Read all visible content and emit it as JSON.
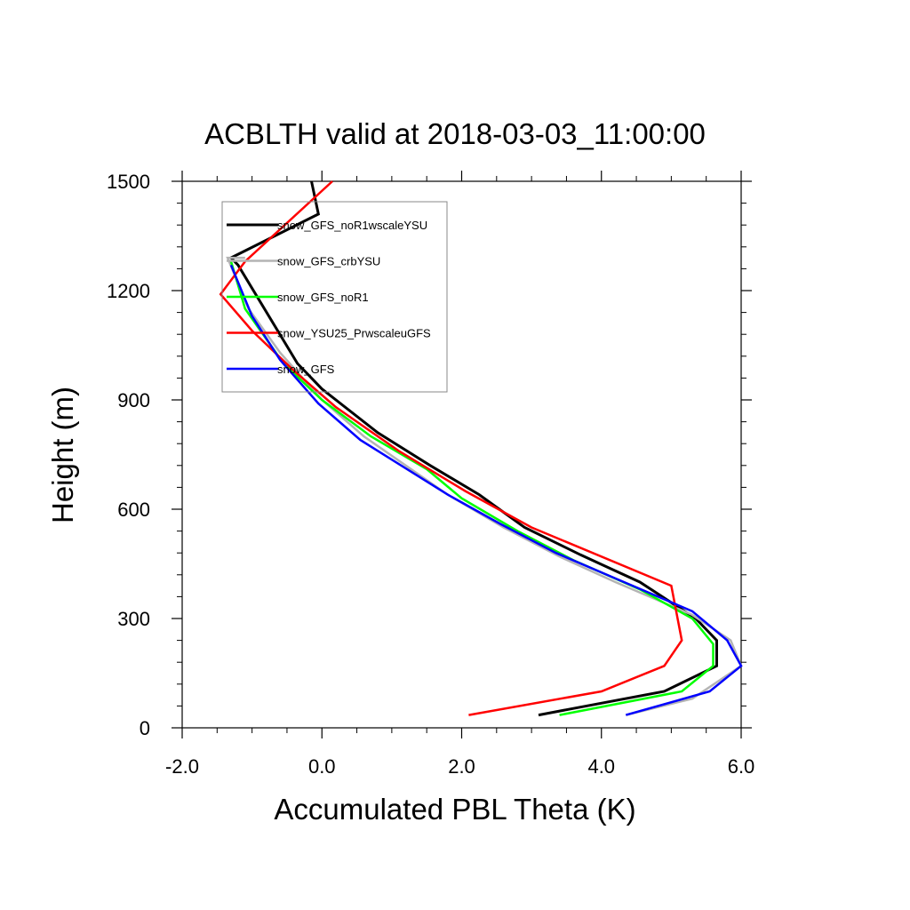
{
  "chart_data": {
    "type": "line",
    "title": "ACBLTH valid at 2018-03-03_11:00:00",
    "xlabel": "Accumulated PBL Theta (K)",
    "ylabel": "Height (m)",
    "xlim": [
      -2.0,
      6.0
    ],
    "ylim": [
      0,
      1500
    ],
    "xticks": [
      -2.0,
      0.0,
      2.0,
      4.0,
      6.0
    ],
    "xtick_labels": [
      "-2.0",
      "0.0",
      "2.0",
      "4.0",
      "6.0"
    ],
    "yticks": [
      0,
      300,
      600,
      900,
      1200,
      1500
    ],
    "ytick_labels": [
      "0",
      "300",
      "600",
      "900",
      "1200",
      "1500"
    ],
    "grid": false,
    "legend_position": "top-left",
    "series": [
      {
        "name": "snow_GFS_noR1wscaleYSU",
        "color": "#000000",
        "points": [
          [
            3.1,
            35
          ],
          [
            4.9,
            100
          ],
          [
            5.65,
            170
          ],
          [
            5.65,
            240
          ],
          [
            5.35,
            300
          ],
          [
            4.55,
            400
          ],
          [
            3.7,
            475
          ],
          [
            2.9,
            550
          ],
          [
            2.25,
            640
          ],
          [
            1.55,
            720
          ],
          [
            0.8,
            810
          ],
          [
            0.0,
            930
          ],
          [
            -0.35,
            1000
          ],
          [
            -1.2,
            1270
          ],
          [
            -1.3,
            1290
          ],
          [
            -0.05,
            1410
          ],
          [
            -0.15,
            1500
          ]
        ]
      },
      {
        "name": "snow_GFS_crbYSU",
        "color": "#b4b4b4",
        "points": [
          [
            4.35,
            35
          ],
          [
            5.3,
            80
          ],
          [
            6.0,
            170
          ],
          [
            5.85,
            240
          ],
          [
            5.3,
            310
          ],
          [
            4.2,
            400
          ],
          [
            3.4,
            470
          ],
          [
            2.6,
            550
          ],
          [
            1.8,
            640
          ],
          [
            0.6,
            800
          ],
          [
            0.0,
            900
          ],
          [
            -0.6,
            1030
          ],
          [
            -1.05,
            1150
          ],
          [
            -1.35,
            1290
          ],
          [
            -1.1,
            1290
          ]
        ]
      },
      {
        "name": "snow_GFS_noR1",
        "color": "#00ff00",
        "points": [
          [
            3.4,
            35
          ],
          [
            5.15,
            100
          ],
          [
            5.6,
            170
          ],
          [
            5.6,
            230
          ],
          [
            5.3,
            300
          ],
          [
            4.55,
            380
          ],
          [
            3.6,
            460
          ],
          [
            2.8,
            540
          ],
          [
            2.0,
            630
          ],
          [
            1.5,
            710
          ],
          [
            0.7,
            800
          ],
          [
            0.0,
            900
          ],
          [
            -0.55,
            1000
          ],
          [
            -1.1,
            1150
          ],
          [
            -1.3,
            1280
          ]
        ]
      },
      {
        "name": "snow_YSU25_PrwscaleuGFS",
        "color": "#ff0000",
        "points": [
          [
            2.1,
            35
          ],
          [
            4.0,
            100
          ],
          [
            4.9,
            170
          ],
          [
            5.15,
            240
          ],
          [
            5.0,
            390
          ],
          [
            3.0,
            550
          ],
          [
            2.05,
            650
          ],
          [
            1.1,
            760
          ],
          [
            0.2,
            880
          ],
          [
            -0.4,
            980
          ],
          [
            -1.0,
            1090
          ],
          [
            -1.45,
            1190
          ],
          [
            -1.1,
            1280
          ],
          [
            0.15,
            1500
          ]
        ]
      },
      {
        "name": "snow_GFS",
        "color": "#0000ff",
        "points": [
          [
            4.35,
            35
          ],
          [
            5.55,
            100
          ],
          [
            6.0,
            170
          ],
          [
            5.8,
            240
          ],
          [
            5.3,
            320
          ],
          [
            4.2,
            410
          ],
          [
            3.35,
            480
          ],
          [
            2.55,
            560
          ],
          [
            1.8,
            640
          ],
          [
            0.55,
            790
          ],
          [
            -0.05,
            890
          ],
          [
            -0.6,
            1010
          ],
          [
            -1.0,
            1130
          ],
          [
            -1.3,
            1270
          ]
        ]
      }
    ]
  }
}
